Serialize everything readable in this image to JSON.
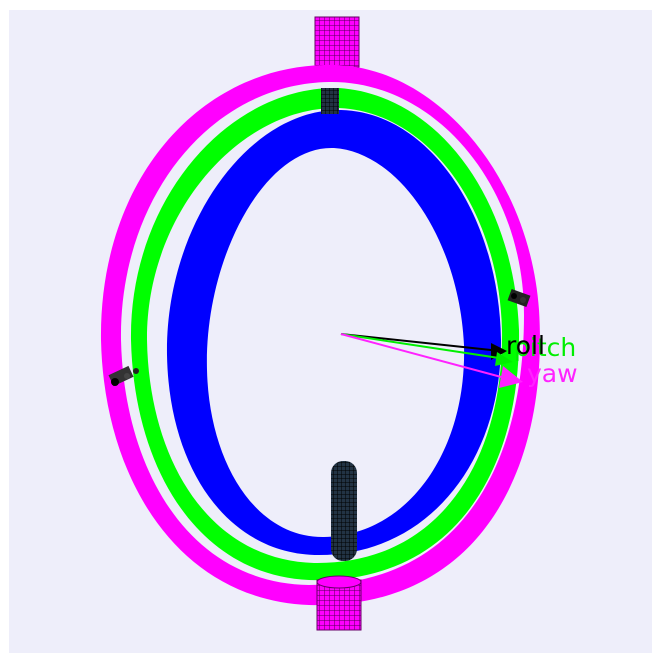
{
  "viewport": {
    "background": "#eeeefa"
  },
  "axes": {
    "roll": {
      "label": "roll",
      "color": "#000000"
    },
    "pitch": {
      "label": "pitch",
      "color": "#00ee00"
    },
    "yaw": {
      "label": "yaw",
      "color": "#ff22ff"
    }
  },
  "gimbal_rings": [
    {
      "name": "outer",
      "color": "#ff00ff"
    },
    {
      "name": "middle",
      "color": "#00ff00"
    },
    {
      "name": "inner",
      "color": "#0000ff"
    }
  ]
}
